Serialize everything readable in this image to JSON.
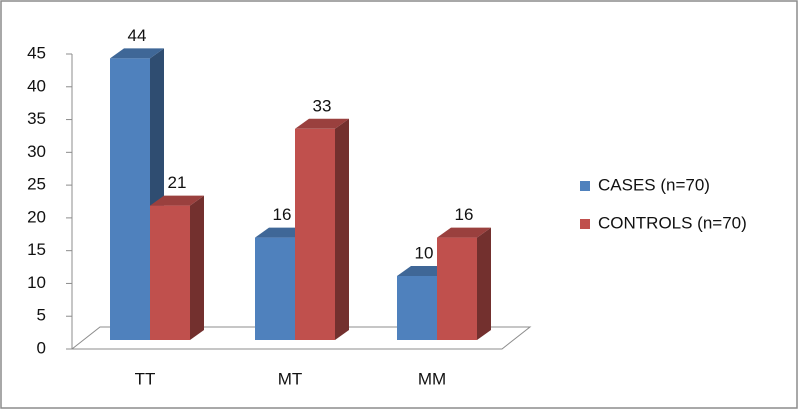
{
  "chart_data": {
    "type": "bar3d",
    "categories": [
      "TT",
      "MT",
      "MM"
    ],
    "series": [
      {
        "name": "CASES (n=70)",
        "color": "#4f81bd",
        "values": [
          44,
          16,
          10
        ]
      },
      {
        "name": "CONTROLS (n=70)",
        "color": "#c0504d",
        "values": [
          21,
          33,
          16
        ]
      }
    ],
    "ylim": [
      0,
      45
    ],
    "yticks": [
      0,
      5,
      10,
      15,
      20,
      25,
      30,
      35,
      40,
      45
    ],
    "legend": "right"
  }
}
